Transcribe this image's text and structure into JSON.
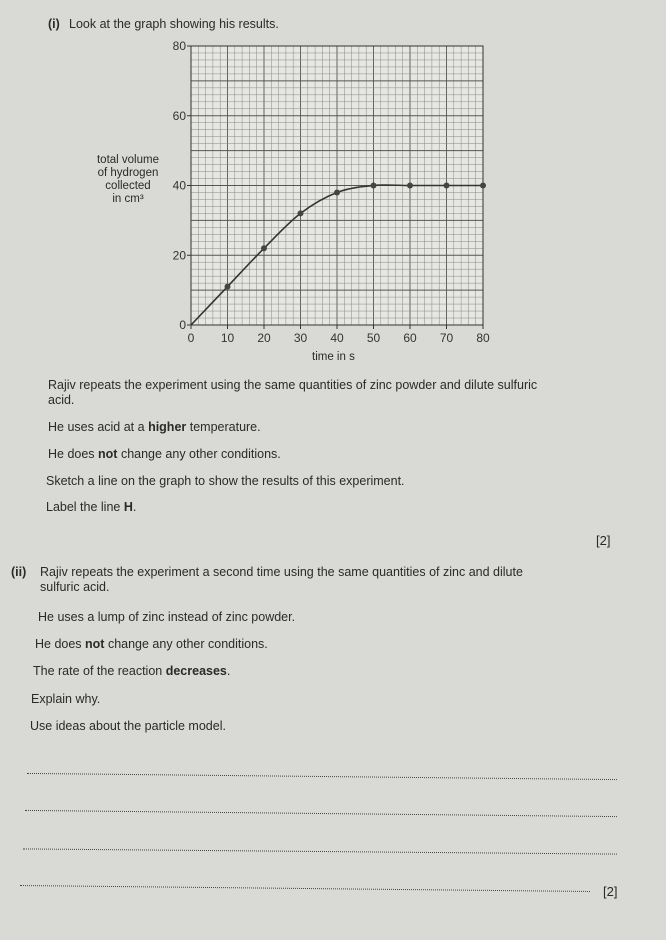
{
  "part_i": {
    "label": "(i)",
    "intro": "Look at the graph showing his results.",
    "para1": "Rajiv repeats the experiment using the same quantities of zinc powder and dilute sulfuric",
    "para1b": "acid.",
    "line2a": "He uses acid at a ",
    "line2b": "higher",
    "line2c": " temperature.",
    "line3a": "He does ",
    "line3b": "not",
    "line3c": " change any other conditions.",
    "line4": "Sketch a line on the graph to show the results of this experiment.",
    "line5a": "Label the line ",
    "line5b": "H",
    "line5c": ".",
    "marks": "[2]"
  },
  "part_ii": {
    "label": "(ii)",
    "para1": "Rajiv repeats the experiment a second time using the same quantities of zinc and dilute",
    "para1b": "sulfuric acid.",
    "line2": "He uses a lump of zinc instead of zinc powder.",
    "line3a": "He does ",
    "line3b": "not",
    "line3c": " change any other conditions.",
    "line4a": "The rate of the reaction ",
    "line4b": "decreases",
    "line4c": ".",
    "line5": "Explain why.",
    "line6": "Use ideas about the particle model.",
    "marks": "[2]"
  },
  "chart_data": {
    "type": "line",
    "xlabel": "time in s",
    "ylabel_lines": [
      "total volume",
      "of hydrogen",
      "collected",
      "in cm³"
    ],
    "xlim": [
      0,
      80
    ],
    "ylim": [
      0,
      80
    ],
    "xticks": [
      0,
      10,
      20,
      30,
      40,
      50,
      60,
      70,
      80
    ],
    "yticks": [
      0,
      20,
      40,
      60,
      80
    ],
    "grid": true,
    "x": [
      0,
      10,
      20,
      30,
      40,
      50,
      60,
      70,
      80
    ],
    "y": [
      0,
      11,
      22,
      32,
      38,
      40,
      40,
      40,
      40
    ]
  }
}
